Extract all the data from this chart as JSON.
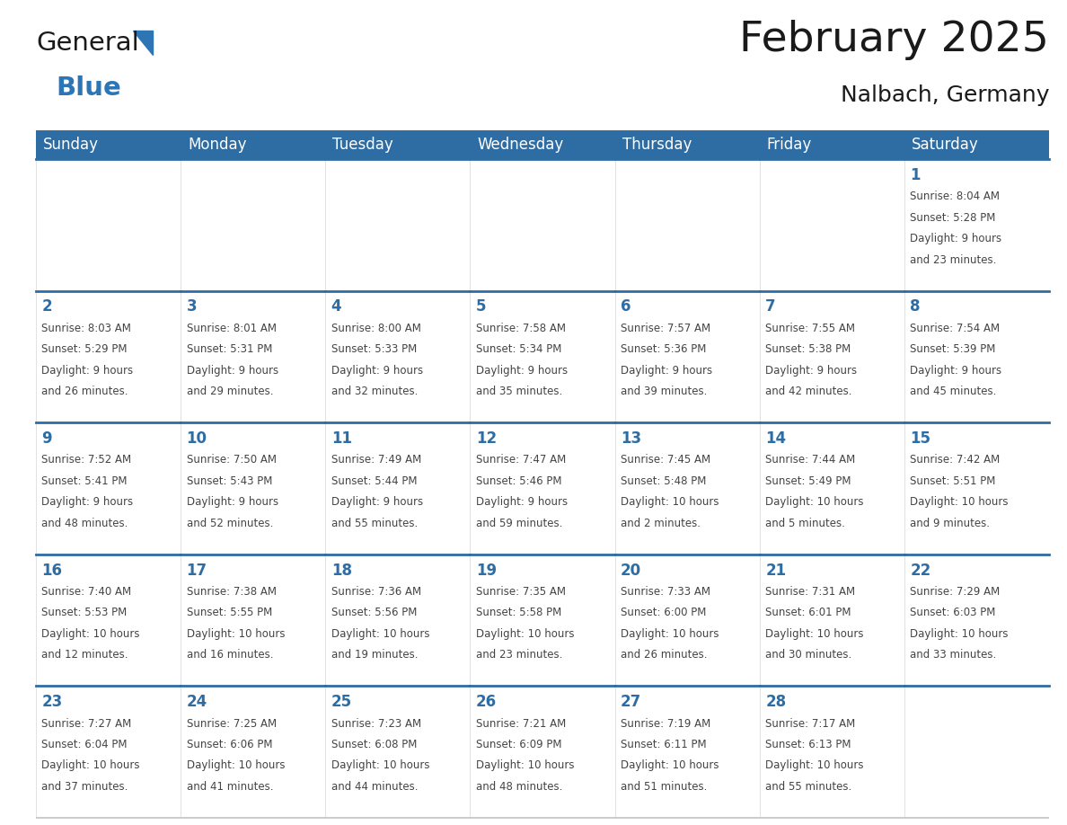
{
  "title": "February 2025",
  "subtitle": "Nalbach, Germany",
  "days_of_week": [
    "Sunday",
    "Monday",
    "Tuesday",
    "Wednesday",
    "Thursday",
    "Friday",
    "Saturday"
  ],
  "header_bg": "#2E6DA4",
  "header_text": "#FFFFFF",
  "cell_bg": "#FFFFFF",
  "day_number_color": "#2E6DA4",
  "text_color": "#444444",
  "border_color": "#CCCCCC",
  "blue_line_color": "#2E6DA4",
  "calendar_data": [
    [
      null,
      null,
      null,
      null,
      null,
      null,
      {
        "day": 1,
        "sunrise": "8:04 AM",
        "sunset": "5:28 PM",
        "daylight": "9 hours and 23 minutes."
      }
    ],
    [
      {
        "day": 2,
        "sunrise": "8:03 AM",
        "sunset": "5:29 PM",
        "daylight": "9 hours and 26 minutes."
      },
      {
        "day": 3,
        "sunrise": "8:01 AM",
        "sunset": "5:31 PM",
        "daylight": "9 hours and 29 minutes."
      },
      {
        "day": 4,
        "sunrise": "8:00 AM",
        "sunset": "5:33 PM",
        "daylight": "9 hours and 32 minutes."
      },
      {
        "day": 5,
        "sunrise": "7:58 AM",
        "sunset": "5:34 PM",
        "daylight": "9 hours and 35 minutes."
      },
      {
        "day": 6,
        "sunrise": "7:57 AM",
        "sunset": "5:36 PM",
        "daylight": "9 hours and 39 minutes."
      },
      {
        "day": 7,
        "sunrise": "7:55 AM",
        "sunset": "5:38 PM",
        "daylight": "9 hours and 42 minutes."
      },
      {
        "day": 8,
        "sunrise": "7:54 AM",
        "sunset": "5:39 PM",
        "daylight": "9 hours and 45 minutes."
      }
    ],
    [
      {
        "day": 9,
        "sunrise": "7:52 AM",
        "sunset": "5:41 PM",
        "daylight": "9 hours and 48 minutes."
      },
      {
        "day": 10,
        "sunrise": "7:50 AM",
        "sunset": "5:43 PM",
        "daylight": "9 hours and 52 minutes."
      },
      {
        "day": 11,
        "sunrise": "7:49 AM",
        "sunset": "5:44 PM",
        "daylight": "9 hours and 55 minutes."
      },
      {
        "day": 12,
        "sunrise": "7:47 AM",
        "sunset": "5:46 PM",
        "daylight": "9 hours and 59 minutes."
      },
      {
        "day": 13,
        "sunrise": "7:45 AM",
        "sunset": "5:48 PM",
        "daylight": "10 hours and 2 minutes."
      },
      {
        "day": 14,
        "sunrise": "7:44 AM",
        "sunset": "5:49 PM",
        "daylight": "10 hours and 5 minutes."
      },
      {
        "day": 15,
        "sunrise": "7:42 AM",
        "sunset": "5:51 PM",
        "daylight": "10 hours and 9 minutes."
      }
    ],
    [
      {
        "day": 16,
        "sunrise": "7:40 AM",
        "sunset": "5:53 PM",
        "daylight": "10 hours and 12 minutes."
      },
      {
        "day": 17,
        "sunrise": "7:38 AM",
        "sunset": "5:55 PM",
        "daylight": "10 hours and 16 minutes."
      },
      {
        "day": 18,
        "sunrise": "7:36 AM",
        "sunset": "5:56 PM",
        "daylight": "10 hours and 19 minutes."
      },
      {
        "day": 19,
        "sunrise": "7:35 AM",
        "sunset": "5:58 PM",
        "daylight": "10 hours and 23 minutes."
      },
      {
        "day": 20,
        "sunrise": "7:33 AM",
        "sunset": "6:00 PM",
        "daylight": "10 hours and 26 minutes."
      },
      {
        "day": 21,
        "sunrise": "7:31 AM",
        "sunset": "6:01 PM",
        "daylight": "10 hours and 30 minutes."
      },
      {
        "day": 22,
        "sunrise": "7:29 AM",
        "sunset": "6:03 PM",
        "daylight": "10 hours and 33 minutes."
      }
    ],
    [
      {
        "day": 23,
        "sunrise": "7:27 AM",
        "sunset": "6:04 PM",
        "daylight": "10 hours and 37 minutes."
      },
      {
        "day": 24,
        "sunrise": "7:25 AM",
        "sunset": "6:06 PM",
        "daylight": "10 hours and 41 minutes."
      },
      {
        "day": 25,
        "sunrise": "7:23 AM",
        "sunset": "6:08 PM",
        "daylight": "10 hours and 44 minutes."
      },
      {
        "day": 26,
        "sunrise": "7:21 AM",
        "sunset": "6:09 PM",
        "daylight": "10 hours and 48 minutes."
      },
      {
        "day": 27,
        "sunrise": "7:19 AM",
        "sunset": "6:11 PM",
        "daylight": "10 hours and 51 minutes."
      },
      {
        "day": 28,
        "sunrise": "7:17 AM",
        "sunset": "6:13 PM",
        "daylight": "10 hours and 55 minutes."
      },
      null
    ]
  ],
  "logo_general_color": "#1a1a1a",
  "logo_blue_color": "#2E75B6",
  "figsize": [
    11.88,
    9.18
  ],
  "dpi": 100
}
